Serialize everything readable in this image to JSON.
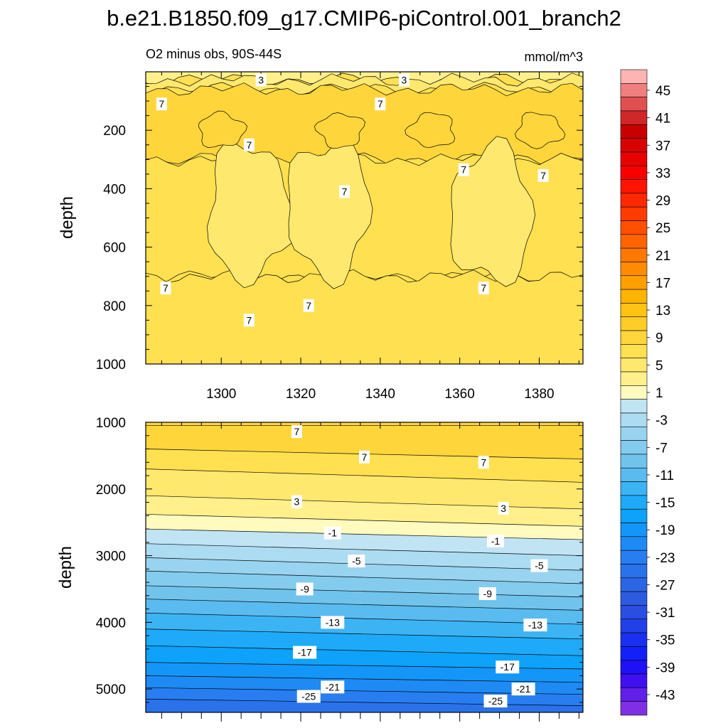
{
  "title": "b.e21.B1850.f09_g17.CMIP6-piControl.001_branch2",
  "subtitle_left": "O2 minus obs, 90S-44S",
  "subtitle_right": "mmol/m^3",
  "ylabel": "depth",
  "chart_data": [
    {
      "type": "heatmap",
      "panel": "upper",
      "xlabel": "",
      "ylabel": "depth",
      "xlim": [
        1281,
        1391
      ],
      "ylim": [
        0,
        1000
      ],
      "y_inverted": true,
      "xticks": [
        1300,
        1320,
        1340,
        1360,
        1380
      ],
      "yticks": [
        200,
        400,
        600,
        800,
        1000
      ],
      "bands": [
        {
          "from": 0,
          "to": 28,
          "value": 2
        },
        {
          "from": 28,
          "to": 60,
          "value": 4
        },
        {
          "from": 60,
          "to": 300,
          "value": 8
        },
        {
          "from": 300,
          "to": 700,
          "value": 6
        },
        {
          "from": 700,
          "to": 1000,
          "value": 7
        }
      ],
      "patches": [
        {
          "x": 1307,
          "y": 480,
          "value": 5
        },
        {
          "x": 1327,
          "y": 470,
          "value": 5
        },
        {
          "x": 1368,
          "y": 490,
          "value": 5
        },
        {
          "x": 1300,
          "y": 200,
          "value": 9
        },
        {
          "x": 1330,
          "y": 200,
          "value": 9
        },
        {
          "x": 1353,
          "y": 200,
          "value": 9
        },
        {
          "x": 1380,
          "y": 200,
          "value": 9
        }
      ],
      "contour_labels": [
        {
          "x": 1310,
          "y": 28,
          "text": "3"
        },
        {
          "x": 1346,
          "y": 28,
          "text": "3"
        },
        {
          "x": 1285,
          "y": 110,
          "text": "7"
        },
        {
          "x": 1340,
          "y": 110,
          "text": "7"
        },
        {
          "x": 1307,
          "y": 250,
          "text": "7"
        },
        {
          "x": 1361,
          "y": 335,
          "text": "7"
        },
        {
          "x": 1381,
          "y": 355,
          "text": "7"
        },
        {
          "x": 1331,
          "y": 410,
          "text": "7"
        },
        {
          "x": 1286,
          "y": 740,
          "text": "7"
        },
        {
          "x": 1366,
          "y": 740,
          "text": "7"
        },
        {
          "x": 1322,
          "y": 800,
          "text": "7"
        },
        {
          "x": 1307,
          "y": 850,
          "text": "7"
        }
      ]
    },
    {
      "type": "heatmap",
      "panel": "lower",
      "xlabel": "",
      "ylabel": "depth",
      "xlim": [
        1281,
        1391
      ],
      "ylim": [
        1000,
        5350
      ],
      "y_inverted": true,
      "yticks": [
        1000,
        2000,
        3000,
        4000,
        5000
      ],
      "isolines": [
        {
          "value": 7,
          "y_left": 1400,
          "y_right": 1550
        },
        {
          "value": 5,
          "y_left": 1700,
          "y_right": 1900
        },
        {
          "value": 3,
          "y_left": 2100,
          "y_right": 2300
        },
        {
          "value": 1,
          "y_left": 2380,
          "y_right": 2560
        },
        {
          "value": -1,
          "y_left": 2600,
          "y_right": 2760
        },
        {
          "value": -3,
          "y_left": 2820,
          "y_right": 3000
        },
        {
          "value": -5,
          "y_left": 3030,
          "y_right": 3220
        },
        {
          "value": -7,
          "y_left": 3230,
          "y_right": 3420
        },
        {
          "value": -9,
          "y_left": 3450,
          "y_right": 3620
        },
        {
          "value": -11,
          "y_left": 3650,
          "y_right": 3820
        },
        {
          "value": -13,
          "y_left": 3860,
          "y_right": 4030
        },
        {
          "value": -15,
          "y_left": 4100,
          "y_right": 4250
        },
        {
          "value": -17,
          "y_left": 4350,
          "y_right": 4500
        },
        {
          "value": -19,
          "y_left": 4600,
          "y_right": 4700
        },
        {
          "value": -21,
          "y_left": 4800,
          "y_right": 4900
        },
        {
          "value": -23,
          "y_left": 4980,
          "y_right": 5080
        },
        {
          "value": -25,
          "y_left": 5150,
          "y_right": 5250
        }
      ],
      "contour_labels": [
        {
          "x": 1319,
          "y": 1140,
          "text": "7"
        },
        {
          "x": 1336,
          "y": 1520,
          "text": "7"
        },
        {
          "x": 1366,
          "y": 1600,
          "text": "7"
        },
        {
          "x": 1319,
          "y": 2190,
          "text": "3"
        },
        {
          "x": 1371,
          "y": 2290,
          "text": "3"
        },
        {
          "x": 1328,
          "y": 2660,
          "text": "-1"
        },
        {
          "x": 1369,
          "y": 2780,
          "text": "-1"
        },
        {
          "x": 1334,
          "y": 3080,
          "text": "-5"
        },
        {
          "x": 1380,
          "y": 3150,
          "text": "-5"
        },
        {
          "x": 1321,
          "y": 3500,
          "text": "-9"
        },
        {
          "x": 1367,
          "y": 3570,
          "text": "-9"
        },
        {
          "x": 1328,
          "y": 4000,
          "text": "-13"
        },
        {
          "x": 1379,
          "y": 4040,
          "text": "-13"
        },
        {
          "x": 1321,
          "y": 4450,
          "text": "-17"
        },
        {
          "x": 1372,
          "y": 4670,
          "text": "-17"
        },
        {
          "x": 1328,
          "y": 4970,
          "text": "-21"
        },
        {
          "x": 1376,
          "y": 5000,
          "text": "-21"
        },
        {
          "x": 1322,
          "y": 5110,
          "text": "-25"
        },
        {
          "x": 1369,
          "y": 5180,
          "text": "-25"
        }
      ]
    },
    {
      "type": "colorbar",
      "units": "mmol/m^3",
      "tick_labels": [
        "45",
        "41",
        "37",
        "33",
        "29",
        "25",
        "21",
        "17",
        "13",
        "9",
        "5",
        "1",
        "-3",
        "-7",
        "-11",
        "-15",
        "-19",
        "-23",
        "-27",
        "-31",
        "-35",
        "-39",
        "-43"
      ],
      "tick_values": [
        45,
        41,
        37,
        33,
        29,
        25,
        21,
        17,
        13,
        9,
        5,
        1,
        -3,
        -7,
        -11,
        -15,
        -19,
        -23,
        -27,
        -31,
        -35,
        -39,
        -43
      ],
      "colors_top_to_bottom": [
        "#ffb4b4",
        "#f08080",
        "#e05050",
        "#d02828",
        "#c80000",
        "#d80000",
        "#e80000",
        "#f80000",
        "#ff1400",
        "#ff2800",
        "#ff3c00",
        "#ff5000",
        "#ff6400",
        "#ff7800",
        "#ff8c00",
        "#ffa000",
        "#ffb400",
        "#ffc314",
        "#ffcc28",
        "#ffd53c",
        "#ffe050",
        "#ffe86e",
        "#fff08c",
        "#fffabe",
        "#c0e4f4",
        "#acdcf2",
        "#98d4f0",
        "#84ccee",
        "#70c4ec",
        "#5abbf0",
        "#3cb4f4",
        "#1eaaf8",
        "#0ea2fa",
        "#1496f8",
        "#1e8af4",
        "#287ef0",
        "#2a72ea",
        "#2c66e4",
        "#2e5ae0",
        "#2a4ee0",
        "#2240e8",
        "#1a30f0",
        "#1420f8",
        "#2010f8",
        "#4010f0",
        "#6020e8",
        "#8030e4"
      ]
    }
  ]
}
